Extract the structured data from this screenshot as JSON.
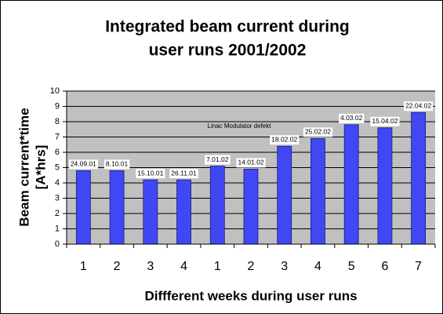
{
  "chart_data": {
    "type": "bar",
    "title": [
      "Integrated beam current during",
      "user runs 2001/2002"
    ],
    "ylabel": [
      "Beam current*time",
      "[A*hrs]"
    ],
    "xlabel": "Diffferent weeks during user runs",
    "annotation": "Linac Modulator defekt",
    "categories": [
      "1",
      "2",
      "3",
      "4",
      "1",
      "2",
      "3",
      "4",
      "5",
      "6",
      "7"
    ],
    "values": [
      4.8,
      4.8,
      4.2,
      4.2,
      5.1,
      4.9,
      6.4,
      6.9,
      7.8,
      7.6,
      8.6
    ],
    "dates": [
      "24.09.01",
      "8.10.01",
      "15.10.01",
      "26.11.01",
      "7.01.02",
      "14.01.02",
      "18.02.02",
      "25.02.02",
      "4.03.02",
      "15.04.02",
      "22.04.02"
    ],
    "color": "#3f48f2",
    "ylim": [
      0,
      10
    ],
    "yticks": [
      0,
      1,
      2,
      3,
      4,
      5,
      6,
      7,
      8,
      9,
      10
    ],
    "grid": true
  }
}
